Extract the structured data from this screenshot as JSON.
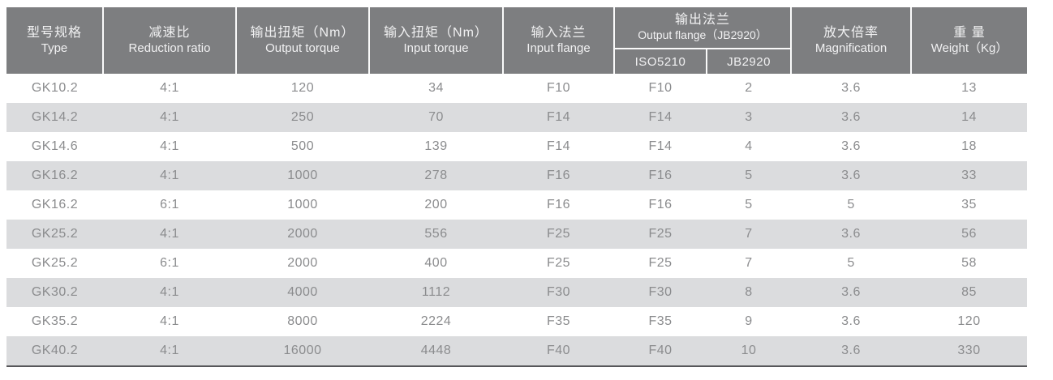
{
  "table": {
    "columns": [
      {
        "id": "type",
        "zh": "型号规格",
        "en": "Type"
      },
      {
        "id": "reduction_ratio",
        "zh": "减速比",
        "en": "Reduction ratio"
      },
      {
        "id": "output_torque",
        "zh": "输出扭矩（Nm）",
        "en": "Output torque"
      },
      {
        "id": "input_torque",
        "zh": "输入扭矩（Nm）",
        "en": "Input torque"
      },
      {
        "id": "input_flange",
        "zh": "输入法兰",
        "en": "Input flange"
      },
      {
        "id": "output_flange",
        "zh": "输出法兰",
        "en": "Output flange（JB2920）",
        "sub": [
          "ISO5210",
          "JB2920"
        ]
      },
      {
        "id": "magnification",
        "zh": "放大倍率",
        "en": "Magnification"
      },
      {
        "id": "weight",
        "zh": "重 量",
        "en": "Weight（Kg）"
      }
    ],
    "rows": [
      [
        "GK10.2",
        "4:1",
        "120",
        "34",
        "F10",
        "F10",
        "2",
        "3.6",
        "13"
      ],
      [
        "GK14.2",
        "4:1",
        "250",
        "70",
        "F14",
        "F14",
        "3",
        "3.6",
        "14"
      ],
      [
        "GK14.6",
        "4:1",
        "500",
        "139",
        "F14",
        "F14",
        "4",
        "3.6",
        "18"
      ],
      [
        "GK16.2",
        "4:1",
        "1000",
        "278",
        "F16",
        "F16",
        "5",
        "3.6",
        "33"
      ],
      [
        "GK16.2",
        "6:1",
        "1000",
        "200",
        "F16",
        "F16",
        "5",
        "5",
        "35"
      ],
      [
        "GK25.2",
        "4:1",
        "2000",
        "556",
        "F25",
        "F25",
        "7",
        "3.6",
        "56"
      ],
      [
        "GK25.2",
        "6:1",
        "2000",
        "400",
        "F25",
        "F25",
        "7",
        "5",
        "58"
      ],
      [
        "GK30.2",
        "4:1",
        "4000",
        "1112",
        "F30",
        "F30",
        "8",
        "3.6",
        "85"
      ],
      [
        "GK35.2",
        "4:1",
        "8000",
        "2224",
        "F35",
        "F35",
        "9",
        "3.6",
        "120"
      ],
      [
        "GK40.2",
        "4:1",
        "16000",
        "4448",
        "F40",
        "F40",
        "10",
        "3.6",
        "330"
      ]
    ]
  },
  "colors": {
    "header_bg": "#7d7e80",
    "header_text": "#f1f1f2",
    "stripe_bg": "#dbdcde",
    "body_text": "#8b8c8e",
    "divider": "#fafafa",
    "bottom_border": "#57575a"
  }
}
